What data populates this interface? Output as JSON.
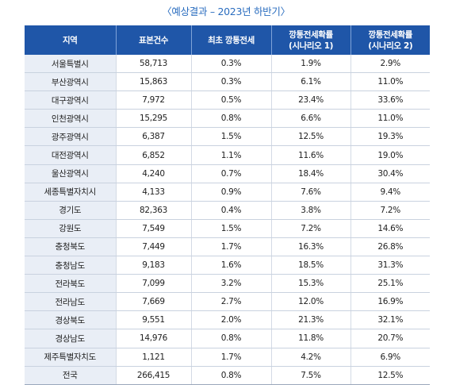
{
  "caption": "〈예상결과 – 2023년 하반기〉",
  "headers": {
    "region": "지역",
    "sample_count": "표본건수",
    "initial_rate": "최초 깡통전세",
    "scenario1_line1": "깡통전세확률",
    "scenario1_line2": "(시나리오 1)",
    "scenario2_line1": "깡통전세확률",
    "scenario2_line2": "(시나리오 2)"
  },
  "rows": [
    [
      "서울특별시",
      "58,713",
      "0.3%",
      "1.9%",
      "2.9%"
    ],
    [
      "부산광역시",
      "15,863",
      "0.3%",
      "6.1%",
      "11.0%"
    ],
    [
      "대구광역시",
      "7,972",
      "0.5%",
      "23.4%",
      "33.6%"
    ],
    [
      "인천광역시",
      "15,295",
      "0.8%",
      "6.6%",
      "11.0%"
    ],
    [
      "광주광역시",
      "6,387",
      "1.5%",
      "12.5%",
      "19.3%"
    ],
    [
      "대전광역시",
      "6,852",
      "1.1%",
      "11.6%",
      "19.0%"
    ],
    [
      "울산광역시",
      "4,240",
      "0.7%",
      "18.4%",
      "30.4%"
    ],
    [
      "세종특별자치시",
      "4,133",
      "0.9%",
      "7.6%",
      "9.4%"
    ],
    [
      "경기도",
      "82,363",
      "0.4%",
      "3.8%",
      "7.2%"
    ],
    [
      "강원도",
      "7,549",
      "1.5%",
      "7.2%",
      "14.6%"
    ],
    [
      "충청북도",
      "7,449",
      "1.7%",
      "16.3%",
      "26.8%"
    ],
    [
      "충청남도",
      "9,183",
      "1.6%",
      "18.5%",
      "31.3%"
    ],
    [
      "전라북도",
      "7,099",
      "3.2%",
      "15.3%",
      "25.1%"
    ],
    [
      "전라남도",
      "7,669",
      "2.7%",
      "12.0%",
      "16.9%"
    ],
    [
      "경상북도",
      "9,551",
      "2.0%",
      "21.3%",
      "32.1%"
    ],
    [
      "경상남도",
      "14,976",
      "0.8%",
      "11.8%",
      "20.7%"
    ],
    [
      "제주특별자치도",
      "1,121",
      "1.7%",
      "4.2%",
      "6.9%"
    ],
    [
      "전국",
      "266,415",
      "0.8%",
      "7.5%",
      "12.5%"
    ]
  ]
}
